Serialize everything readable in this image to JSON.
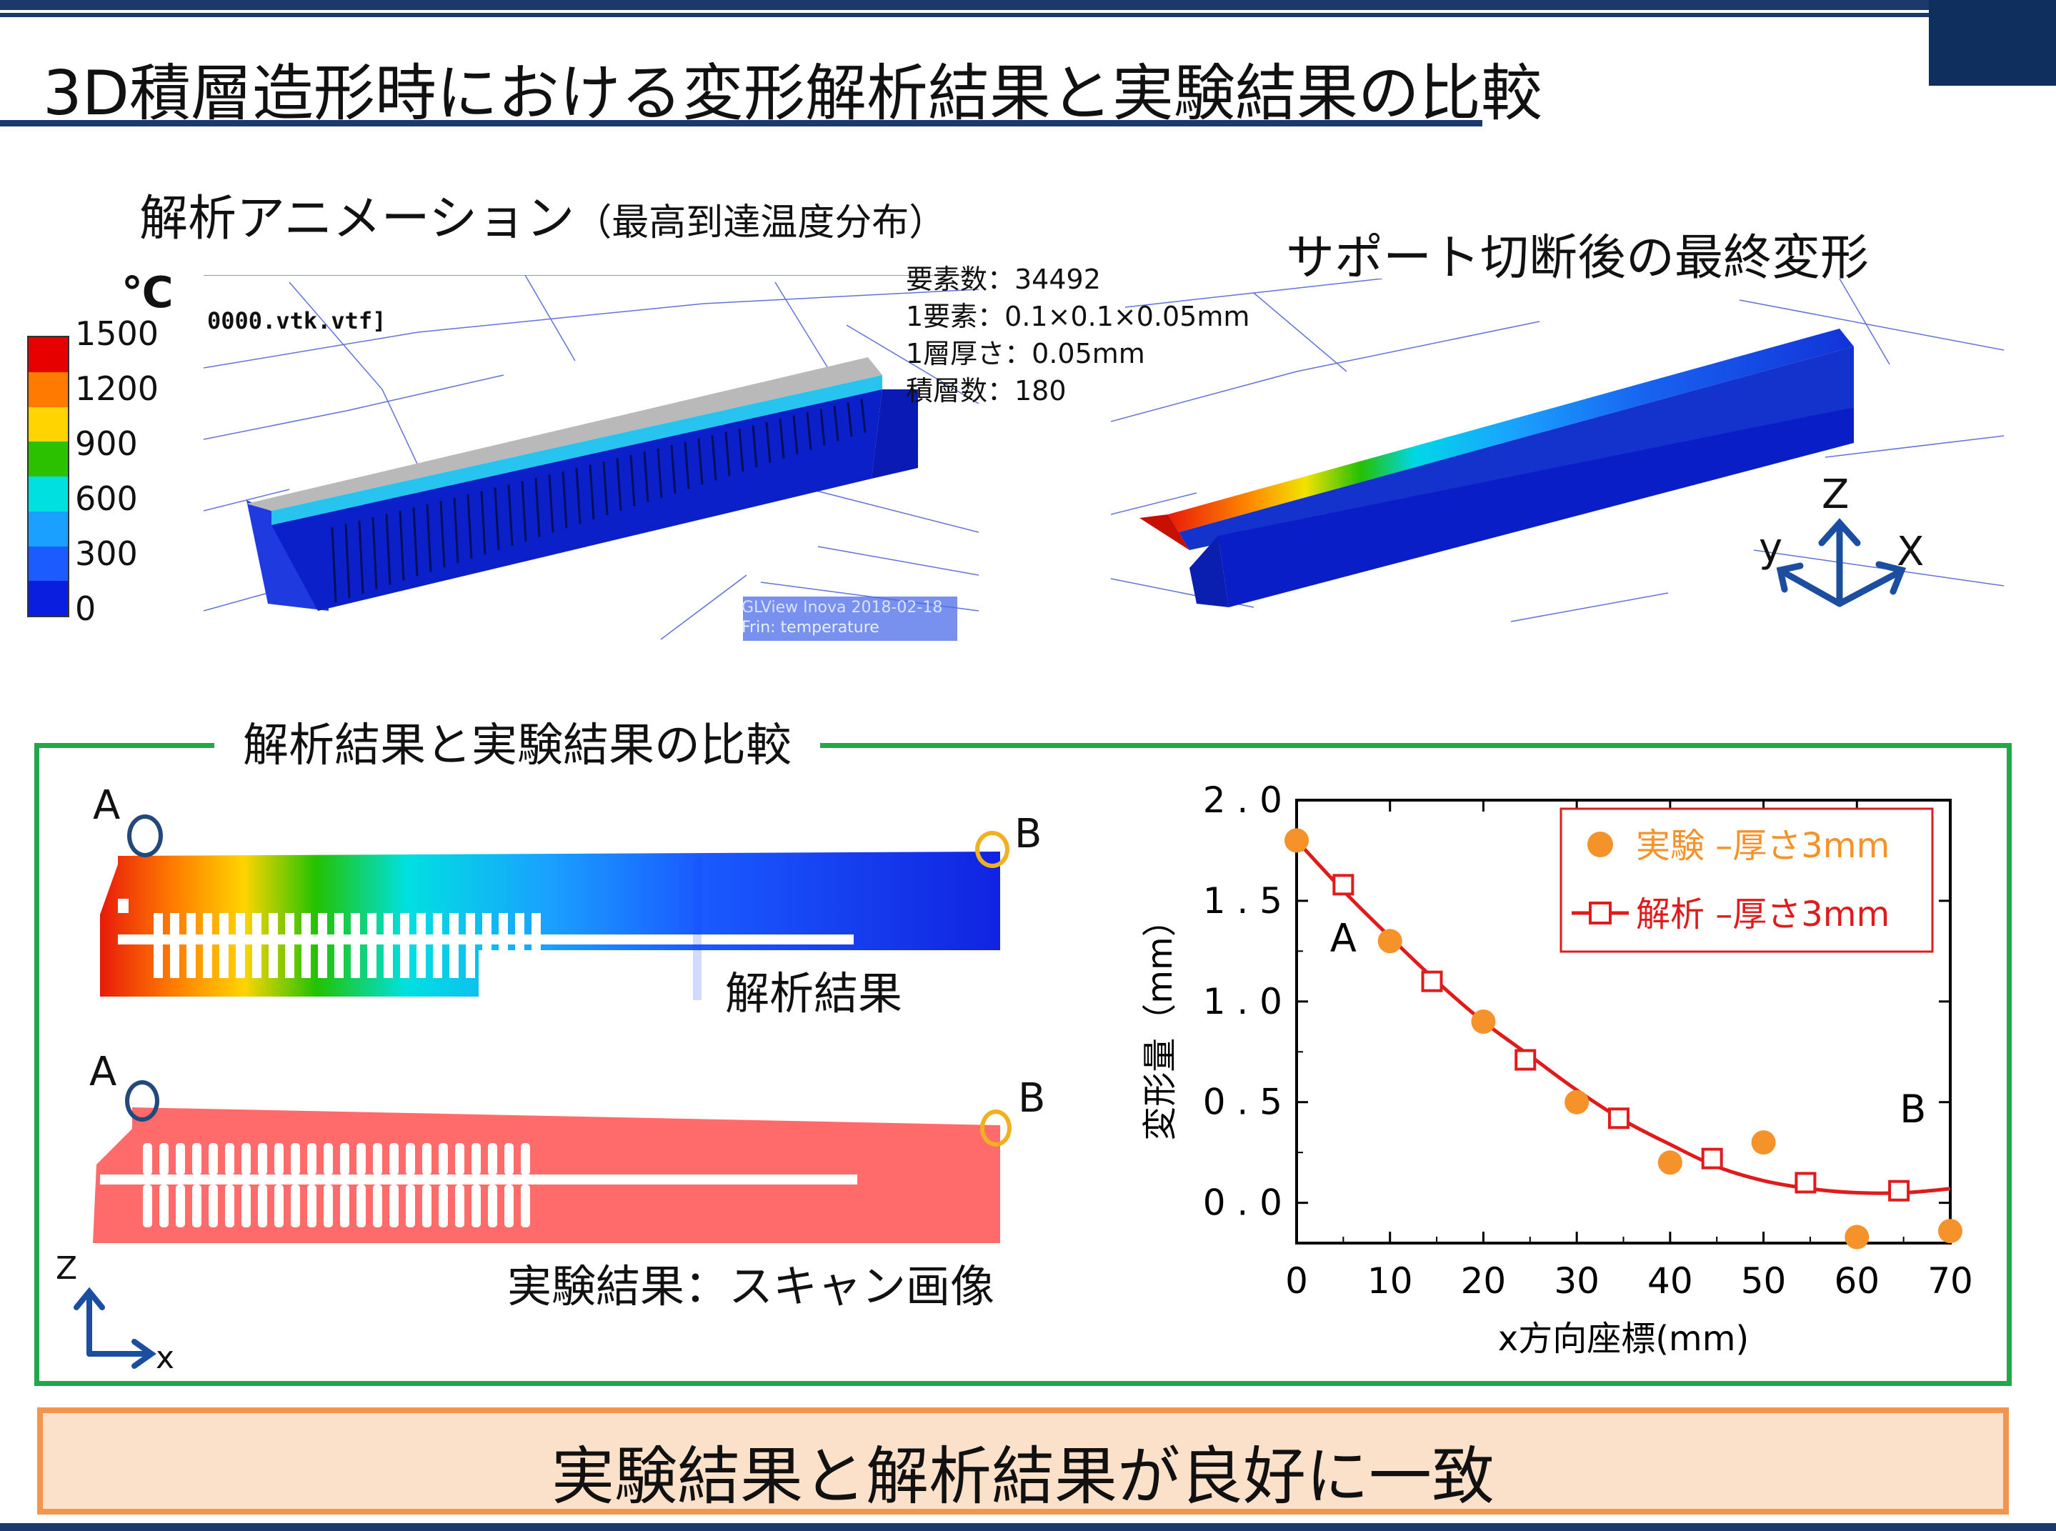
{
  "title": "3D積層造形時における変形解析結果と実験結果の比較",
  "anim": {
    "heading": "解析アニメーション",
    "heading_sub": "（最高到達温度分布）",
    "file_label": "0000.vtk.vtf]",
    "watermark1": "GLView Inova 2018-02-18",
    "watermark2": "Frin: temperature",
    "unit": "℃",
    "legend_ticks": [
      "1500",
      "1200",
      "900",
      "600",
      "300",
      "0"
    ],
    "legend_colors": [
      "#e60000",
      "#ff7a00",
      "#ffd400",
      "#2cc100",
      "#00e0e0",
      "#1aa0ff",
      "#1a5cff",
      "#0a1ee0"
    ]
  },
  "mesh_info": [
    "要素数：34492",
    "1要素：0.1×0.1×0.05mm",
    "1層厚さ：0.05mm",
    "積層数：180"
  ],
  "final": {
    "heading": "サポート切断後の最終変形",
    "axis_z": "Z",
    "axis_y": "y",
    "axis_x": "X"
  },
  "compare": {
    "heading": "解析結果と実験結果の比較",
    "sim_caption": "解析結果",
    "exp_caption": "実験結果：スキャン画像",
    "point_a": "A",
    "point_b": "B",
    "axis_z": "Z",
    "axis_x": "x"
  },
  "chart_data": {
    "type": "scatter",
    "xlabel": "x方向座標(mm)",
    "ylabel": "変形量（mm）",
    "xlim": [
      0,
      70
    ],
    "ylim": [
      -0.2,
      2.0
    ],
    "xticks": [
      "0",
      "10",
      "20",
      "30",
      "40",
      "50",
      "60",
      "70"
    ],
    "yticks": [
      "0.0",
      "0.5",
      "1.0",
      "1.5",
      "2.0"
    ],
    "legend_position": "top-right",
    "annotations": [
      {
        "text": "A",
        "x": 5,
        "y": 1.25
      },
      {
        "text": "B",
        "x": 66,
        "y": 0.4
      }
    ],
    "series": [
      {
        "name": "実験 –厚さ3mm",
        "color": "#f5922a",
        "marker": "filled-circle",
        "x": [
          0,
          10,
          20,
          30,
          40,
          50,
          60,
          70
        ],
        "y": [
          1.8,
          1.3,
          0.9,
          0.5,
          0.2,
          0.3,
          -0.17,
          -0.14
        ]
      },
      {
        "name": "解析 –厚さ3mm",
        "color": "#e01b1b",
        "marker": "open-square",
        "x": [
          5,
          14.5,
          24.5,
          34.5,
          44.5,
          54.5,
          64.5
        ],
        "y": [
          1.58,
          1.1,
          0.71,
          0.42,
          0.22,
          0.1,
          0.06
        ]
      }
    ],
    "fit_curve": {
      "x": [
        0,
        5,
        10,
        15,
        20,
        25,
        30,
        35,
        40,
        45,
        50,
        55,
        60,
        65,
        70
      ],
      "y": [
        1.8,
        1.55,
        1.32,
        1.1,
        0.9,
        0.73,
        0.56,
        0.41,
        0.29,
        0.18,
        0.11,
        0.07,
        0.05,
        0.05,
        0.07
      ]
    }
  },
  "conclusion": "実験結果と解析結果が良好に一致"
}
